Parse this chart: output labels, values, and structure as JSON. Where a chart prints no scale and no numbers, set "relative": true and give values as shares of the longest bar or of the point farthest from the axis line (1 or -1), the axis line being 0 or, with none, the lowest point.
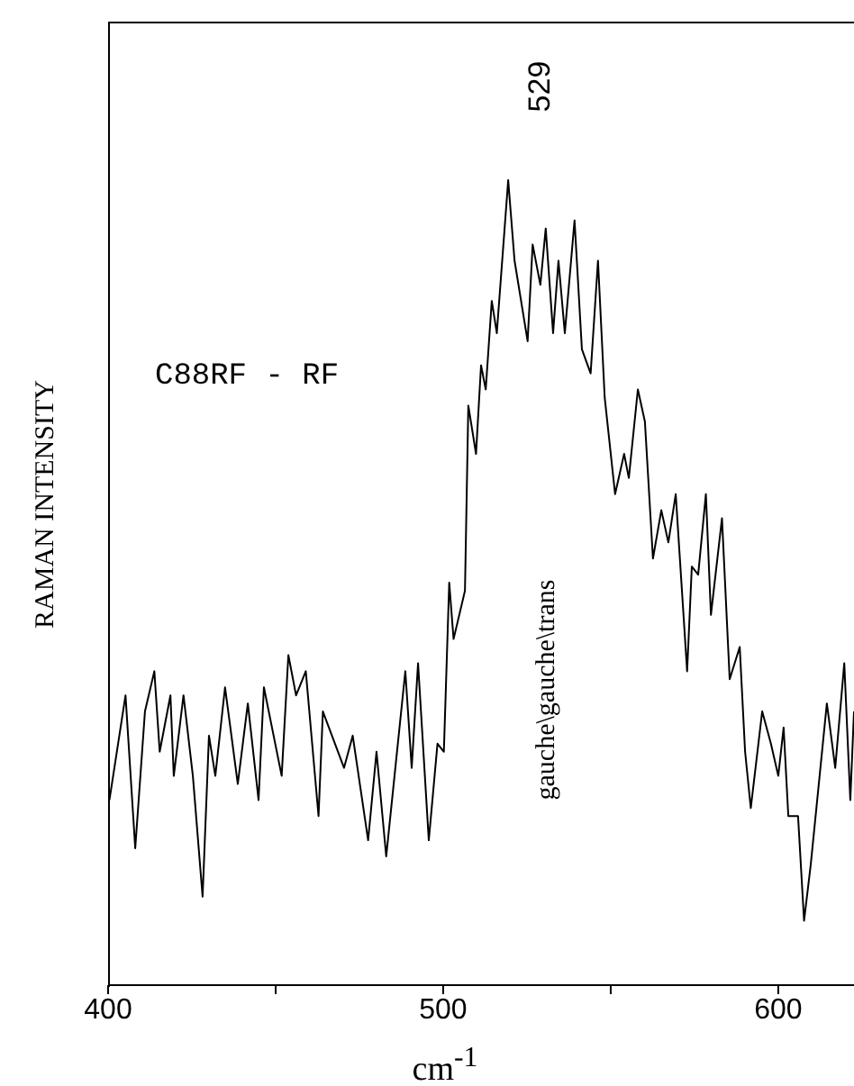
{
  "chart_data": {
    "type": "line",
    "relative": true,
    "xlabel": "cm$^{-1}$",
    "ylabel": "RAMAN INTENSITY",
    "annotations": [
      "C88RF - RF",
      "529",
      "gauche\\gauche\\trans"
    ],
    "xlim": [
      400,
      622.6
    ],
    "xticks": [
      400,
      {
        "value": 450,
        "label": null
      },
      500,
      {
        "value": 550,
        "label": null
      },
      600
    ],
    "marker": "none",
    "line_style": "solid",
    "grid": false,
    "legend": false,
    "x": [
      400.4,
      405.2,
      408.1,
      411.0,
      413.8,
      415.4,
      418.6,
      419.6,
      422.5,
      425.3,
      428.2,
      430.1,
      432.0,
      434.9,
      438.7,
      441.7,
      444.9,
      446.5,
      451.8,
      453.8,
      456.1,
      459.0,
      462.8,
      464.1,
      470.4,
      473.0,
      477.6,
      480.1,
      483.0,
      488.7,
      490.6,
      492.5,
      495.7,
      498.3,
      500.2,
      501.8,
      503.1,
      506.5,
      507.5,
      509.8,
      511.3,
      512.7,
      514.5,
      516.0,
      519.4,
      521.3,
      525.2,
      526.7,
      529.0,
      530.6,
      532.8,
      534.4,
      536.3,
      539.2,
      541.4,
      544.0,
      546.2,
      548.2,
      551.3,
      554.0,
      555.4,
      558.1,
      560.2,
      562.6,
      565.1,
      567.2,
      569.4,
      572.8,
      574.2,
      576.1,
      578.4,
      579.9,
      583.2,
      585.5,
      588.5,
      590.1,
      591.8,
      595.2,
      597.8,
      600.0,
      601.6,
      603.0,
      605.9,
      607.7,
      609.7,
      614.5,
      617.0,
      619.7,
      621.5,
      622.6
    ],
    "series": [
      {
        "color": "#000000",
        "values": [
          0.23,
          0.36,
          0.17,
          0.34,
          0.39,
          0.29,
          0.36,
          0.26,
          0.36,
          0.26,
          0.11,
          0.31,
          0.26,
          0.37,
          0.25,
          0.35,
          0.23,
          0.37,
          0.26,
          0.41,
          0.36,
          0.39,
          0.21,
          0.34,
          0.27,
          0.31,
          0.18,
          0.29,
          0.16,
          0.39,
          0.27,
          0.4,
          0.18,
          0.3,
          0.29,
          0.5,
          0.43,
          0.49,
          0.72,
          0.66,
          0.77,
          0.74,
          0.85,
          0.81,
          1.0,
          0.9,
          0.8,
          0.92,
          0.87,
          0.94,
          0.81,
          0.9,
          0.81,
          0.95,
          0.79,
          0.76,
          0.9,
          0.73,
          0.61,
          0.66,
          0.63,
          0.74,
          0.7,
          0.53,
          0.59,
          0.55,
          0.61,
          0.39,
          0.52,
          0.51,
          0.61,
          0.46,
          0.58,
          0.38,
          0.42,
          0.29,
          0.22,
          0.34,
          0.3,
          0.26,
          0.32,
          0.21,
          0.21,
          0.08,
          0.15,
          0.35,
          0.27,
          0.4,
          0.23,
          0.34
        ]
      }
    ]
  }
}
